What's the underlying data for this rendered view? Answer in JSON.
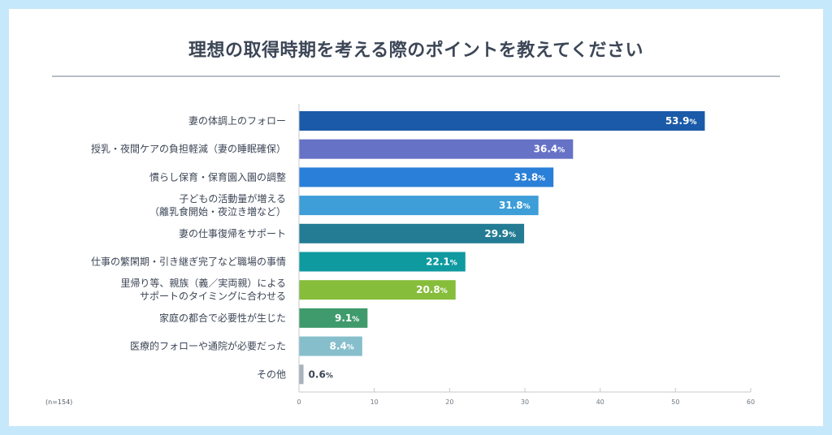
{
  "title": "理想の取得時期を考える際のポイントを教えてください",
  "note": "(n=154)",
  "chart_data": {
    "type": "bar",
    "orientation": "horizontal",
    "title": "理想の取得時期を考える際のポイントを教えてください",
    "xlabel": "",
    "ylabel": "",
    "xlim": [
      0,
      60
    ],
    "xticks": [
      0,
      10,
      20,
      30,
      40,
      50,
      60
    ],
    "grid": false,
    "value_suffix": "%",
    "categories": [
      [
        "妻の体調上のフォロー"
      ],
      [
        "授乳・夜間ケアの負担軽減（妻の睡眠確保）"
      ],
      [
        "慣らし保育・保育園入園の調整"
      ],
      [
        "子どもの活動量が増える",
        "（離乳食開始・夜泣き増など）"
      ],
      [
        "妻の仕事復帰をサポート"
      ],
      [
        "仕事の繁閑期・引き継ぎ完了など職場の事情"
      ],
      [
        "里帰り等、親族（義／実両親）による",
        "サポートのタイミングに合わせる"
      ],
      [
        "家庭の都合で必要性が生じた"
      ],
      [
        "医療的フォローや通院が必要だった"
      ],
      [
        "その他"
      ]
    ],
    "values": [
      53.9,
      36.4,
      33.8,
      31.8,
      29.9,
      22.1,
      20.8,
      9.1,
      8.4,
      0.6
    ],
    "value_labels": [
      "53.9",
      "36.4",
      "33.8",
      "31.8",
      "29.9",
      "22.1",
      "20.8",
      "9.1",
      "8.4",
      "0.6"
    ],
    "colors": [
      "#1a5aa8",
      "#6672c6",
      "#2a7fd8",
      "#3d9ed8",
      "#237c94",
      "#0f9aa0",
      "#86bd3a",
      "#3f9a6c",
      "#86bfcb",
      "#a9b3bb"
    ],
    "note": "(n=154)"
  }
}
